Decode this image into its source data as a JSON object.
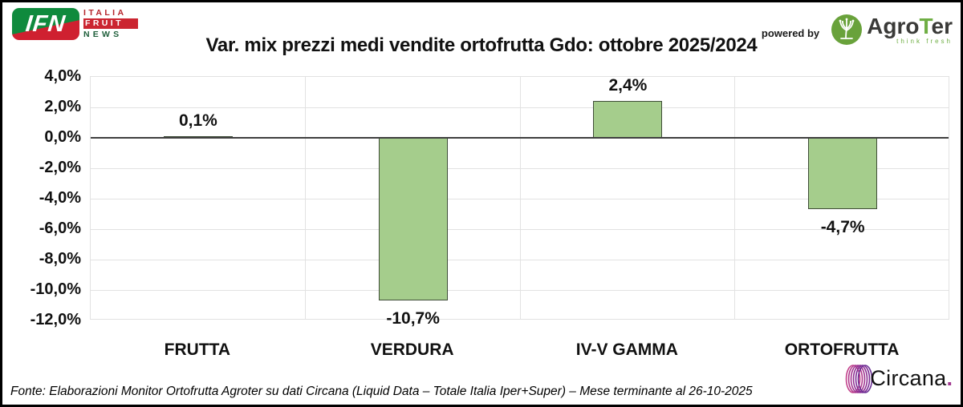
{
  "header": {
    "ifn": {
      "badge": "IFN",
      "line1": "ITALIA",
      "line2": "FRUIT",
      "line3": "NEWS"
    },
    "powered_by": "powered by",
    "agroter": {
      "agro": "Agro",
      "t": "T",
      "er": "er",
      "tagline": "think fresh"
    }
  },
  "chart_data": {
    "type": "bar",
    "title": "Var. mix prezzi medi vendite ortofrutta Gdo: ottobre 2025/2024",
    "categories": [
      "FRUTTA",
      "VERDURA",
      "IV-V GAMMA",
      "ORTOFRUTTA"
    ],
    "values": [
      0.1,
      -10.7,
      2.4,
      -4.7
    ],
    "value_labels": [
      "0,1%",
      "-10,7%",
      "2,4%",
      "-4,7%"
    ],
    "xlabel": "",
    "ylabel": "",
    "ylim": [
      -12,
      4
    ],
    "yticks": [
      {
        "value": 4,
        "label": "4,0%"
      },
      {
        "value": 2,
        "label": "2,0%"
      },
      {
        "value": 0,
        "label": "0,0%"
      },
      {
        "value": -2,
        "label": "-2,0%"
      },
      {
        "value": -4,
        "label": "-4,0%"
      },
      {
        "value": -6,
        "label": "-6,0%"
      },
      {
        "value": -8,
        "label": "-8,0%"
      },
      {
        "value": -10,
        "label": "-10,0%"
      },
      {
        "value": -12,
        "label": "-12,0%"
      }
    ],
    "grid": true,
    "legend": false,
    "bar_color": "#a5cd8c",
    "bar_border_color": "#3f4d38",
    "zero_line_color": "#3f3f3f",
    "gridline_color": "#e2e2e2"
  },
  "footer": {
    "source": "Fonte: Elaborazioni Monitor Ortofrutta Agroter su dati Circana (Liquid Data – Totale Italia Iper+Super) – Mese terminante al 26-10-2025",
    "circana_name": "Circana",
    "circana_dot": "."
  }
}
